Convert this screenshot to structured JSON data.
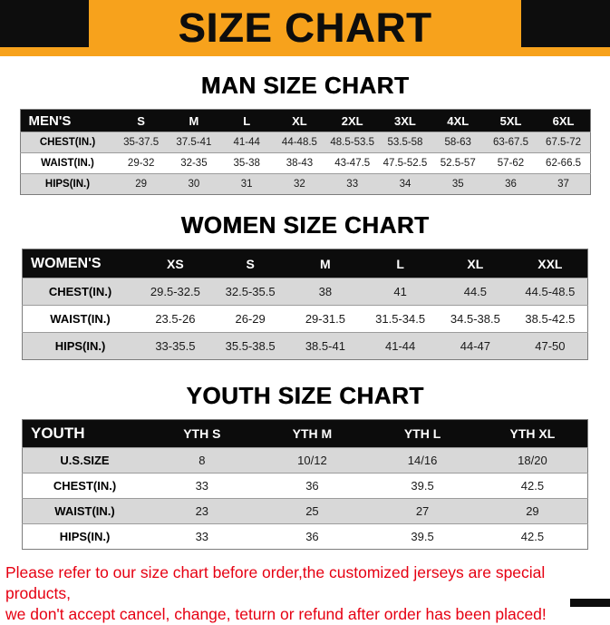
{
  "banner": {
    "title": "SIZE CHART"
  },
  "colors": {
    "banner_bg": "#F7A21C",
    "corner_black": "#0D0D0D",
    "table_header_bg": "#0C0C0C",
    "row_alt_bg": "#D8D8D8",
    "footer_text": "#E60012"
  },
  "sections": {
    "men": {
      "heading": "MAN SIZE CHART",
      "header": [
        "MEN'S",
        "S",
        "M",
        "L",
        "XL",
        "2XL",
        "3XL",
        "4XL",
        "5XL",
        "6XL"
      ],
      "rows": [
        [
          "CHEST(IN.)",
          "35-37.5",
          "37.5-41",
          "41-44",
          "44-48.5",
          "48.5-53.5",
          "53.5-58",
          "58-63",
          "63-67.5",
          "67.5-72"
        ],
        [
          "WAIST(IN.)",
          "29-32",
          "32-35",
          "35-38",
          "38-43",
          "43-47.5",
          "47.5-52.5",
          "52.5-57",
          "57-62",
          "62-66.5"
        ],
        [
          "HIPS(IN.)",
          "29",
          "30",
          "31",
          "32",
          "33",
          "34",
          "35",
          "36",
          "37"
        ]
      ]
    },
    "women": {
      "heading": "WOMEN SIZE CHART",
      "header": [
        "WOMEN'S",
        "XS",
        "S",
        "M",
        "L",
        "XL",
        "XXL"
      ],
      "rows": [
        [
          "CHEST(IN.)",
          "29.5-32.5",
          "32.5-35.5",
          "38",
          "41",
          "44.5",
          "44.5-48.5"
        ],
        [
          "WAIST(IN.)",
          "23.5-26",
          "26-29",
          "29-31.5",
          "31.5-34.5",
          "34.5-38.5",
          "38.5-42.5"
        ],
        [
          "HIPS(IN.)",
          "33-35.5",
          "35.5-38.5",
          "38.5-41",
          "41-44",
          "44-47",
          "47-50"
        ]
      ]
    },
    "youth": {
      "heading": "YOUTH SIZE CHART",
      "header": [
        "YOUTH",
        "YTH S",
        "YTH M",
        "YTH L",
        "YTH XL"
      ],
      "rows": [
        [
          "U.S.SIZE",
          "8",
          "10/12",
          "14/16",
          "18/20"
        ],
        [
          "CHEST(IN.)",
          "33",
          "36",
          "39.5",
          "42.5"
        ],
        [
          "WAIST(IN.)",
          "23",
          "25",
          "27",
          "29"
        ],
        [
          "HIPS(IN.)",
          "33",
          "36",
          "39.5",
          "42.5"
        ]
      ]
    }
  },
  "footer": {
    "line1": "Please refer to our size chart before order,the customized jerseys are special products,",
    "line2": "we don't accept cancel, change, teturn or refund after order has been placed!"
  }
}
